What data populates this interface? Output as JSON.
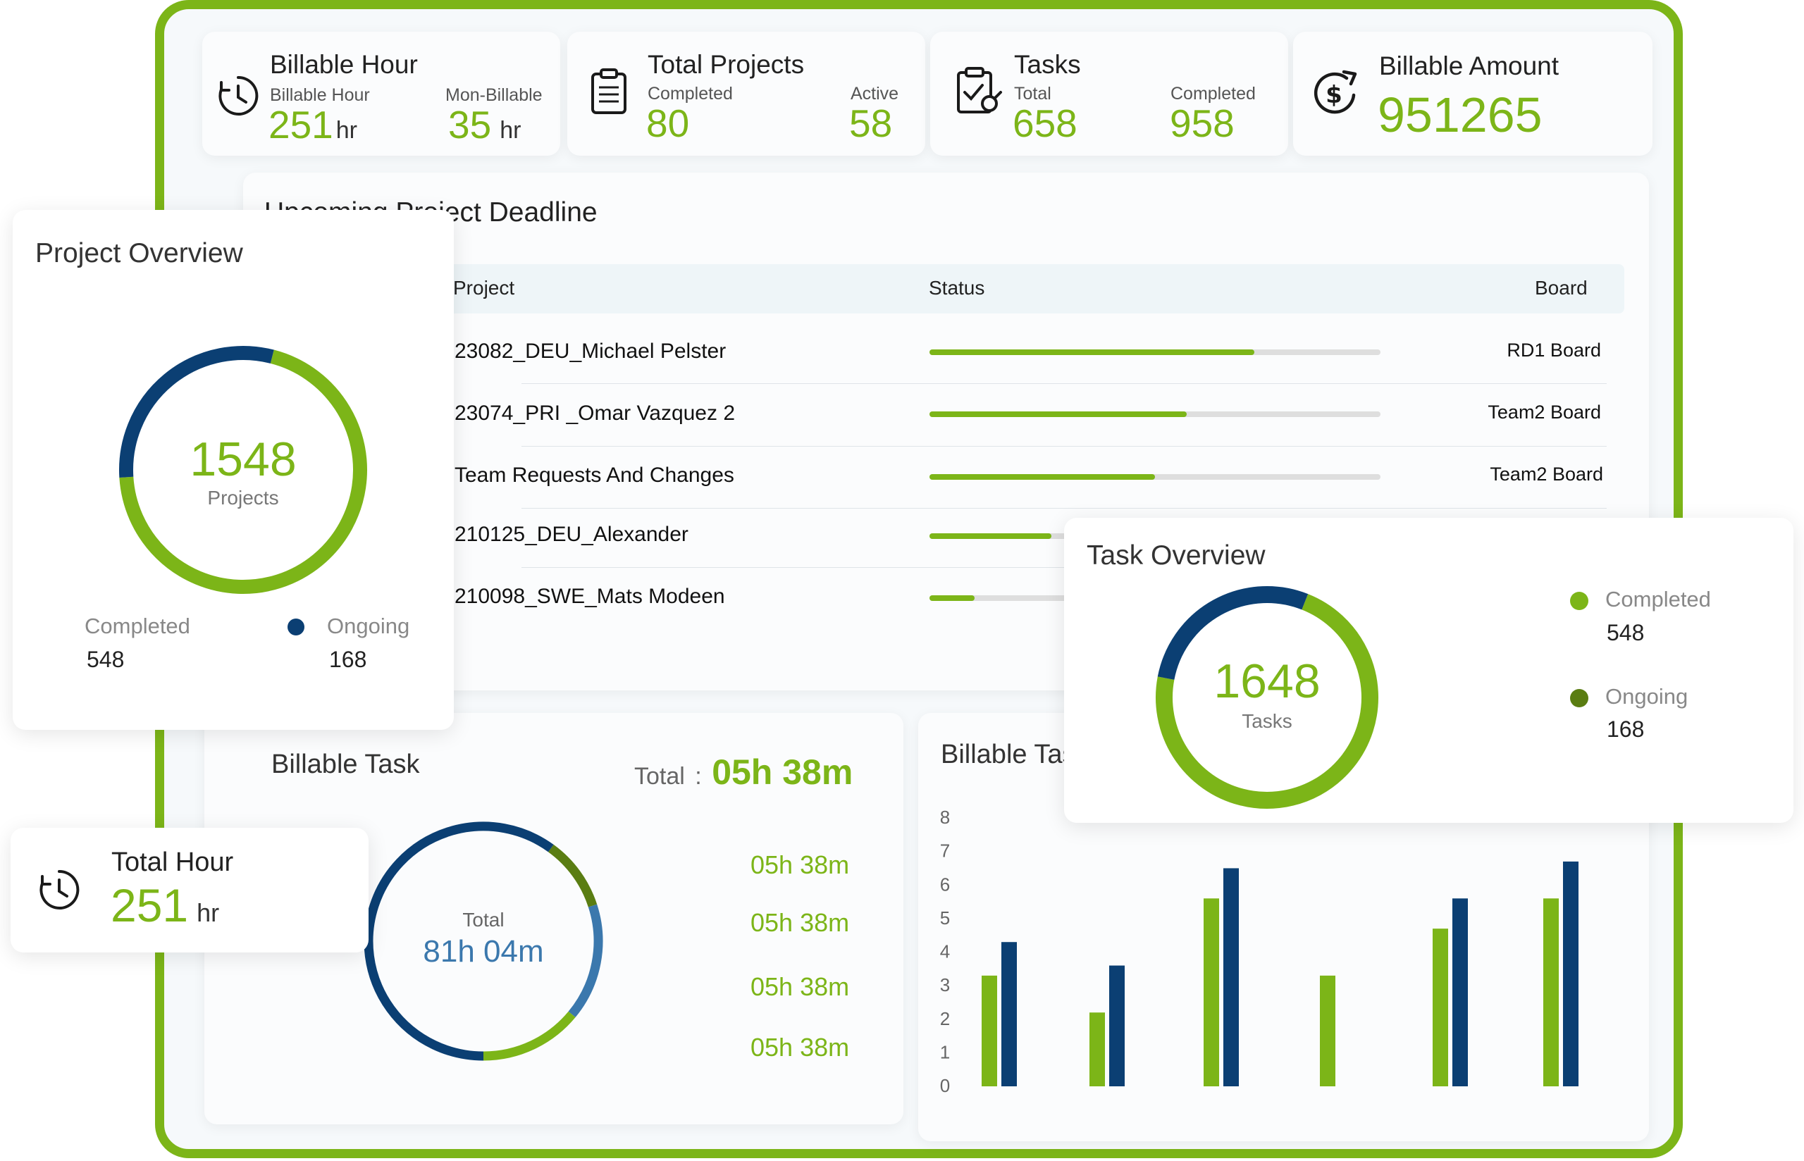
{
  "colors": {
    "accent": "#7cb518",
    "navy": "#0b3f73",
    "track": "#dedede",
    "midblue": "#3b78ad",
    "olive": "#5a7d12"
  },
  "kpis": {
    "billable_hour": {
      "title": "Billable Hour",
      "billable_label": "Billable Hour",
      "billable_value": "251",
      "billable_unit": "hr",
      "nonbillable_label": "Mon-Billable",
      "nonbillable_value": "35",
      "nonbillable_unit": "hr",
      "icon": "clock-icon"
    },
    "total_projects": {
      "title": "Total Projects",
      "completed_label": "Completed",
      "completed_value": "80",
      "active_label": "Active",
      "active_value": "58",
      "icon": "clipboard-icon"
    },
    "tasks": {
      "title": "Tasks",
      "total_label": "Total",
      "total_value": "658",
      "completed_label": "Completed",
      "completed_value": "958",
      "icon": "task-check-icon"
    },
    "billable_amount": {
      "title": "Billable Amount",
      "value": "951265",
      "icon": "dollar-refresh-icon"
    }
  },
  "deadline": {
    "title": "Upcoming Project Deadline",
    "headers": {
      "project": "Project",
      "status": "Status",
      "board": "Board"
    },
    "rows": [
      {
        "project": "23082_DEU_Michael Pelster",
        "progress": 0.72,
        "board": "RD1 Board"
      },
      {
        "project": "23074_PRI _Omar Vazquez 2",
        "progress": 0.57,
        "board": "Team2 Board"
      },
      {
        "project": "Team Requests And Changes",
        "progress": 0.5,
        "board": "Team2 Board"
      },
      {
        "project": "210125_DEU_Alexander",
        "progress": 0.27,
        "board": ""
      },
      {
        "project": "210098_SWE_Mats Modeen",
        "progress": 0.1,
        "board": ""
      }
    ]
  },
  "project_overview": {
    "title": "Project Overview",
    "center_value": "1548",
    "center_label": "Projects",
    "completed_label": "Completed",
    "completed_value": "548",
    "ongoing_label": "Ongoing",
    "ongoing_value": "168",
    "completed_fraction": 0.7
  },
  "task_overview": {
    "title": "Task Overview",
    "center_value": "1648",
    "center_label": "Tasks",
    "completed_label": "Completed",
    "completed_value": "548",
    "ongoing_label": "Ongoing",
    "ongoing_value": "168",
    "completed_fraction": 0.72
  },
  "billable_task": {
    "title": "Billable Task",
    "total_label": "Total",
    "total_sep": ":",
    "total_value": "05h 38m",
    "center_label": "Total",
    "center_value": "81h 04m",
    "items": [
      "05h 38m",
      "05h 38m",
      "05h 38m",
      "05h 38m"
    ],
    "segments": [
      0.1,
      0.16,
      0.14,
      0.6
    ]
  },
  "total_hour": {
    "title": "Total Hour",
    "value": "251",
    "unit": "hr",
    "icon": "clock-icon"
  },
  "chart_data": {
    "type": "bar",
    "title": "Billable Task",
    "ylim": [
      0,
      8
    ],
    "yticks": [
      "0",
      "1",
      "2",
      "3",
      "4",
      "5",
      "6",
      "7",
      "8"
    ],
    "series": [
      {
        "values": [
          3.3,
          2.2,
          5.6,
          3.3,
          4.7,
          5.6
        ],
        "color": "#7cb518"
      },
      {
        "values": [
          4.3,
          3.6,
          6.5,
          null,
          5.6,
          6.7
        ],
        "color": "#0b3f73"
      }
    ]
  }
}
